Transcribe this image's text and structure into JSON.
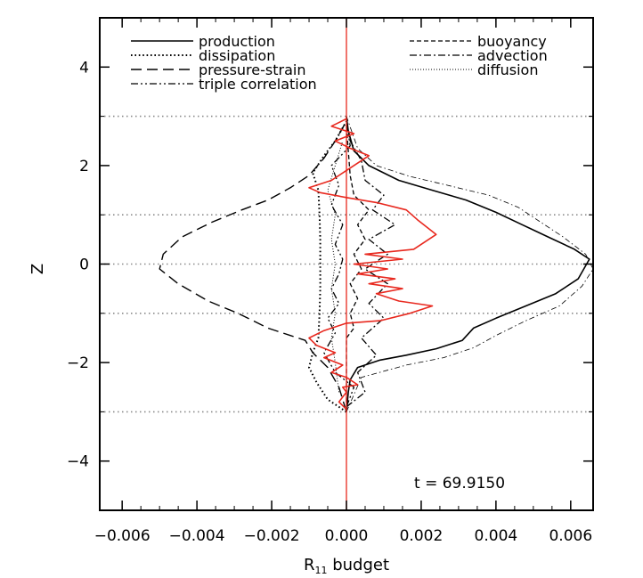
{
  "chart_data": {
    "type": "line",
    "title": "",
    "xlabel": "R",
    "xlabel_subscript": "11",
    "xlabel_suffix": "budget",
    "ylabel": "Z",
    "xlim": [
      -0.0066,
      0.0066
    ],
    "ylim": [
      -5,
      5
    ],
    "xticks": [
      -0.006,
      -0.004,
      -0.002,
      0.0,
      0.002,
      0.004,
      0.006
    ],
    "xtick_labels": [
      "−0.006",
      "−0.004",
      "−0.002",
      "0.000",
      "0.002",
      "0.004",
      "0.006"
    ],
    "yticks": [
      -4,
      -2,
      0,
      2,
      4
    ],
    "ytick_labels": [
      "−4",
      "−2",
      "0",
      "2",
      "4"
    ],
    "reference_lines_z": [
      3,
      1,
      0,
      -1,
      -3
    ],
    "annotation": "t = 69.9150",
    "legend_placement": "top",
    "grid": false,
    "series": [
      {
        "name": "production",
        "style": "solid",
        "color": "#000000",
        "points": [
          [
            0.0,
            -3.0
          ],
          [
            5e-05,
            -2.6
          ],
          [
            0.0001,
            -2.35
          ],
          [
            0.0003,
            -2.1
          ],
          [
            0.0009,
            -1.95
          ],
          [
            0.0016,
            -1.85
          ],
          [
            0.0024,
            -1.72
          ],
          [
            0.0031,
            -1.55
          ],
          [
            0.0034,
            -1.3
          ],
          [
            0.004,
            -1.1
          ],
          [
            0.0048,
            -0.85
          ],
          [
            0.0056,
            -0.6
          ],
          [
            0.0062,
            -0.3
          ],
          [
            0.0065,
            0.1
          ],
          [
            0.0061,
            0.3
          ],
          [
            0.0054,
            0.55
          ],
          [
            0.0047,
            0.8
          ],
          [
            0.004,
            1.05
          ],
          [
            0.0032,
            1.3
          ],
          [
            0.0023,
            1.5
          ],
          [
            0.0014,
            1.7
          ],
          [
            0.0006,
            2.0
          ],
          [
            0.0002,
            2.3
          ],
          [
            5e-05,
            2.7
          ],
          [
            0.0,
            3.0
          ]
        ]
      },
      {
        "name": "dissipation",
        "style": "dotted",
        "color": "#000000",
        "points": [
          [
            0.0,
            -3.0
          ],
          [
            -0.0005,
            -2.75
          ],
          [
            -0.0008,
            -2.4
          ],
          [
            -0.001,
            -2.1
          ],
          [
            -0.0009,
            -1.8
          ],
          [
            -0.00075,
            -1.5
          ],
          [
            -0.00072,
            -1.0
          ],
          [
            -0.0007,
            -0.5
          ],
          [
            -0.0007,
            0.0
          ],
          [
            -0.0007,
            0.5
          ],
          [
            -0.00072,
            1.0
          ],
          [
            -0.00075,
            1.5
          ],
          [
            -0.0009,
            1.85
          ],
          [
            -0.0006,
            2.2
          ],
          [
            -0.0003,
            2.5
          ],
          [
            0.0,
            2.9
          ]
        ]
      },
      {
        "name": "pressure-strain",
        "style": "longdash",
        "color": "#000000",
        "points": [
          [
            0.0,
            -3.0
          ],
          [
            -0.0002,
            -2.5
          ],
          [
            -0.0005,
            -2.1
          ],
          [
            -0.0009,
            -1.8
          ],
          [
            -0.0011,
            -1.55
          ],
          [
            -0.0015,
            -1.45
          ],
          [
            -0.0021,
            -1.3
          ],
          [
            -0.0029,
            -1.0
          ],
          [
            -0.0037,
            -0.75
          ],
          [
            -0.0045,
            -0.4
          ],
          [
            -0.005,
            -0.1
          ],
          [
            -0.0049,
            0.2
          ],
          [
            -0.0044,
            0.55
          ],
          [
            -0.0036,
            0.85
          ],
          [
            -0.0028,
            1.1
          ],
          [
            -0.0021,
            1.3
          ],
          [
            -0.0015,
            1.55
          ],
          [
            -0.001,
            1.8
          ],
          [
            -0.0006,
            2.15
          ],
          [
            -0.0003,
            2.5
          ],
          [
            0.0,
            2.9
          ]
        ]
      },
      {
        "name": "triple correlation",
        "style": "dashdotdot",
        "color": "#000000",
        "points": [
          [
            0.0,
            -2.9
          ],
          [
            0.0002,
            -2.5
          ],
          [
            -0.0003,
            -2.2
          ],
          [
            -0.0006,
            -1.8
          ],
          [
            -0.0003,
            -1.4
          ],
          [
            -0.0005,
            -1.1
          ],
          [
            -0.0002,
            -0.8
          ],
          [
            -0.0004,
            -0.5
          ],
          [
            -0.0002,
            -0.2
          ],
          [
            -0.0001,
            0.1
          ],
          [
            -0.0003,
            0.4
          ],
          [
            -0.0001,
            0.8
          ],
          [
            -0.0004,
            1.2
          ],
          [
            -0.0002,
            1.6
          ],
          [
            -0.0004,
            2.0
          ],
          [
            0.0001,
            2.4
          ],
          [
            0.0,
            2.9
          ]
        ]
      },
      {
        "name": "buoyancy",
        "style": "dashed",
        "color": "#000000",
        "points": [
          [
            0.0,
            -2.8
          ],
          [
            0.0,
            -1.5
          ],
          [
            0.0002,
            -1.3
          ],
          [
            0.0001,
            -1.0
          ],
          [
            0.0003,
            -0.7
          ],
          [
            0.0001,
            -0.4
          ],
          [
            0.0004,
            -0.1
          ],
          [
            0.0002,
            0.2
          ],
          [
            0.0005,
            0.5
          ],
          [
            0.0003,
            0.8
          ],
          [
            0.0006,
            1.1
          ],
          [
            0.0002,
            1.4
          ],
          [
            0.0001,
            1.8
          ],
          [
            0.0,
            2.8
          ]
        ]
      },
      {
        "name": "advection",
        "style": "dashdot",
        "color": "#000000",
        "points": [
          [
            0.0,
            -2.9
          ],
          [
            0.0005,
            -2.6
          ],
          [
            0.0003,
            -2.2
          ],
          [
            0.0008,
            -1.85
          ],
          [
            0.0004,
            -1.5
          ],
          [
            0.001,
            -1.1
          ],
          [
            0.0006,
            -0.8
          ],
          [
            0.0011,
            -0.4
          ],
          [
            0.0005,
            -0.1
          ],
          [
            0.0011,
            0.2
          ],
          [
            0.0006,
            0.5
          ],
          [
            0.0013,
            0.8
          ],
          [
            0.0007,
            1.1
          ],
          [
            0.001,
            1.4
          ],
          [
            0.0005,
            1.7
          ],
          [
            0.0004,
            2.1
          ],
          [
            0.0001,
            2.5
          ],
          [
            0.0,
            2.9
          ]
        ]
      },
      {
        "name": "diffusion",
        "style": "thin-dotted",
        "color": "#000000",
        "points": [
          [
            -0.0002,
            -2.6
          ],
          [
            -0.0003,
            -2.0
          ],
          [
            -0.0004,
            -1.5
          ],
          [
            -0.0003,
            -1.0
          ],
          [
            -0.0004,
            -0.5
          ],
          [
            -0.0003,
            0.0
          ],
          [
            -0.0004,
            0.5
          ],
          [
            -0.0003,
            1.0
          ],
          [
            -0.0005,
            1.5
          ],
          [
            -0.0003,
            2.0
          ],
          [
            -0.0001,
            2.5
          ]
        ]
      },
      {
        "name": "",
        "style": "thin-dashdot",
        "color": "#000000",
        "points": [
          [
            0.0,
            -3.0
          ],
          [
            0.0004,
            -2.3
          ],
          [
            0.0016,
            -2.05
          ],
          [
            0.0026,
            -1.9
          ],
          [
            0.0034,
            -1.7
          ],
          [
            0.004,
            -1.45
          ],
          [
            0.0048,
            -1.15
          ],
          [
            0.0057,
            -0.85
          ],
          [
            0.0063,
            -0.45
          ],
          [
            0.0066,
            -0.1
          ],
          [
            0.0064,
            0.2
          ],
          [
            0.0058,
            0.55
          ],
          [
            0.0052,
            0.85
          ],
          [
            0.0046,
            1.15
          ],
          [
            0.0038,
            1.4
          ],
          [
            0.0027,
            1.6
          ],
          [
            0.0017,
            1.78
          ],
          [
            0.0008,
            2.0
          ],
          [
            0.0003,
            2.35
          ],
          [
            0.0,
            3.0
          ]
        ]
      },
      {
        "name": "",
        "style": "solid",
        "color": "#e8281e",
        "points": [
          [
            0.0,
            -2.95
          ],
          [
            -0.0002,
            -2.8
          ],
          [
            0.0,
            -2.6
          ],
          [
            -0.0001,
            -2.5
          ],
          [
            0.0003,
            -2.45
          ],
          [
            0.0,
            -2.3
          ],
          [
            -0.0004,
            -2.2
          ],
          [
            -0.0001,
            -2.05
          ],
          [
            -0.0006,
            -1.9
          ],
          [
            -0.0003,
            -1.8
          ],
          [
            -0.0008,
            -1.65
          ],
          [
            -0.001,
            -1.5
          ],
          [
            -0.0006,
            -1.35
          ],
          [
            0.0,
            -1.2
          ],
          [
            0.0009,
            -1.15
          ],
          [
            0.0017,
            -1.0
          ],
          [
            0.0023,
            -0.85
          ],
          [
            0.0014,
            -0.75
          ],
          [
            0.0008,
            -0.6
          ],
          [
            0.0015,
            -0.5
          ],
          [
            0.0006,
            -0.4
          ],
          [
            0.0013,
            -0.3
          ],
          [
            0.0003,
            -0.2
          ],
          [
            0.0011,
            -0.1
          ],
          [
            0.0002,
            0.0
          ],
          [
            0.0015,
            0.1
          ],
          [
            0.0005,
            0.2
          ],
          [
            0.0018,
            0.3
          ],
          [
            0.0024,
            0.6
          ],
          [
            0.0019,
            0.9
          ],
          [
            0.0016,
            1.1
          ],
          [
            0.0008,
            1.25
          ],
          [
            0.0,
            1.35
          ],
          [
            -0.0007,
            1.45
          ],
          [
            -0.001,
            1.55
          ],
          [
            -0.0004,
            1.7
          ],
          [
            0.0,
            1.9
          ],
          [
            0.0006,
            2.2
          ],
          [
            0.0001,
            2.35
          ],
          [
            -0.0003,
            2.5
          ],
          [
            0.0002,
            2.65
          ],
          [
            -0.0004,
            2.8
          ],
          [
            0.0,
            2.95
          ]
        ]
      }
    ]
  }
}
